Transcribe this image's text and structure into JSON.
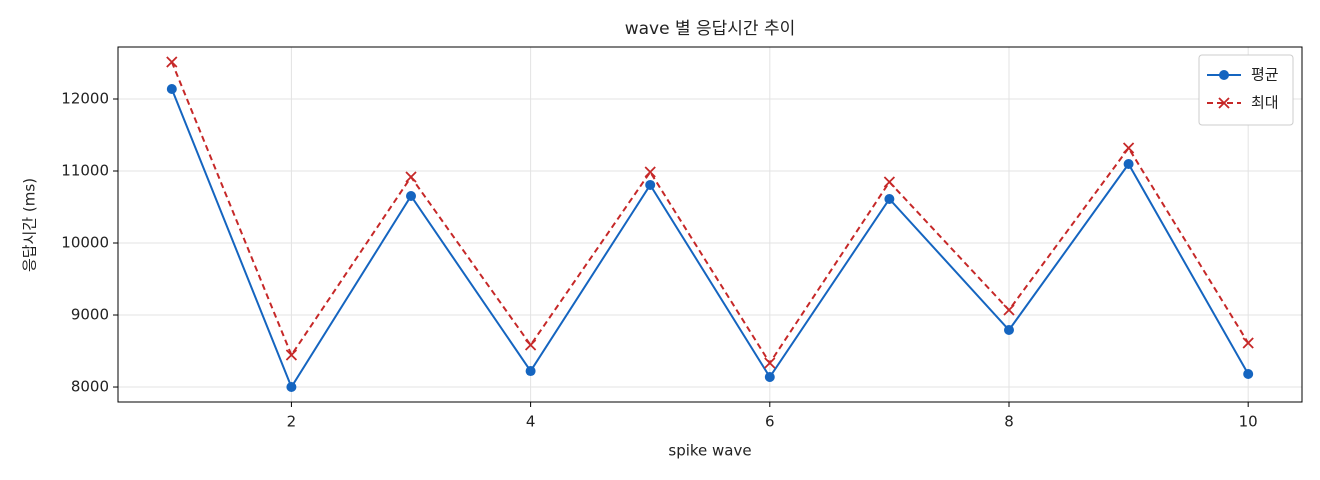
{
  "chart_data": {
    "type": "line",
    "title": "wave 별 응답시간 추이",
    "x_label": "spike wave",
    "y_label": "응답시간 (ms)",
    "x": [
      1,
      2,
      3,
      4,
      5,
      6,
      7,
      8,
      9,
      10
    ],
    "series": [
      {
        "name": "평균",
        "color": "#1565c0",
        "linestyle": "solid",
        "marker": "o",
        "values": [
          12139,
          8000,
          10653,
          8222,
          10806,
          8139,
          10611,
          8792,
          11097,
          8181
        ]
      },
      {
        "name": "최대",
        "color": "#c62828",
        "linestyle": "dashed",
        "marker": "x",
        "values": [
          12514,
          8444,
          10917,
          8583,
          10986,
          8333,
          10847,
          9069,
          11319,
          8611
        ]
      }
    ],
    "xlim": [
      0.55,
      10.45
    ],
    "ylim": [
      7792,
      12722
    ],
    "xticks": [
      2,
      4,
      6,
      8,
      10
    ],
    "yticks": [
      8000,
      9000,
      10000,
      11000,
      12000
    ],
    "grid": true,
    "legend": "upper right"
  }
}
